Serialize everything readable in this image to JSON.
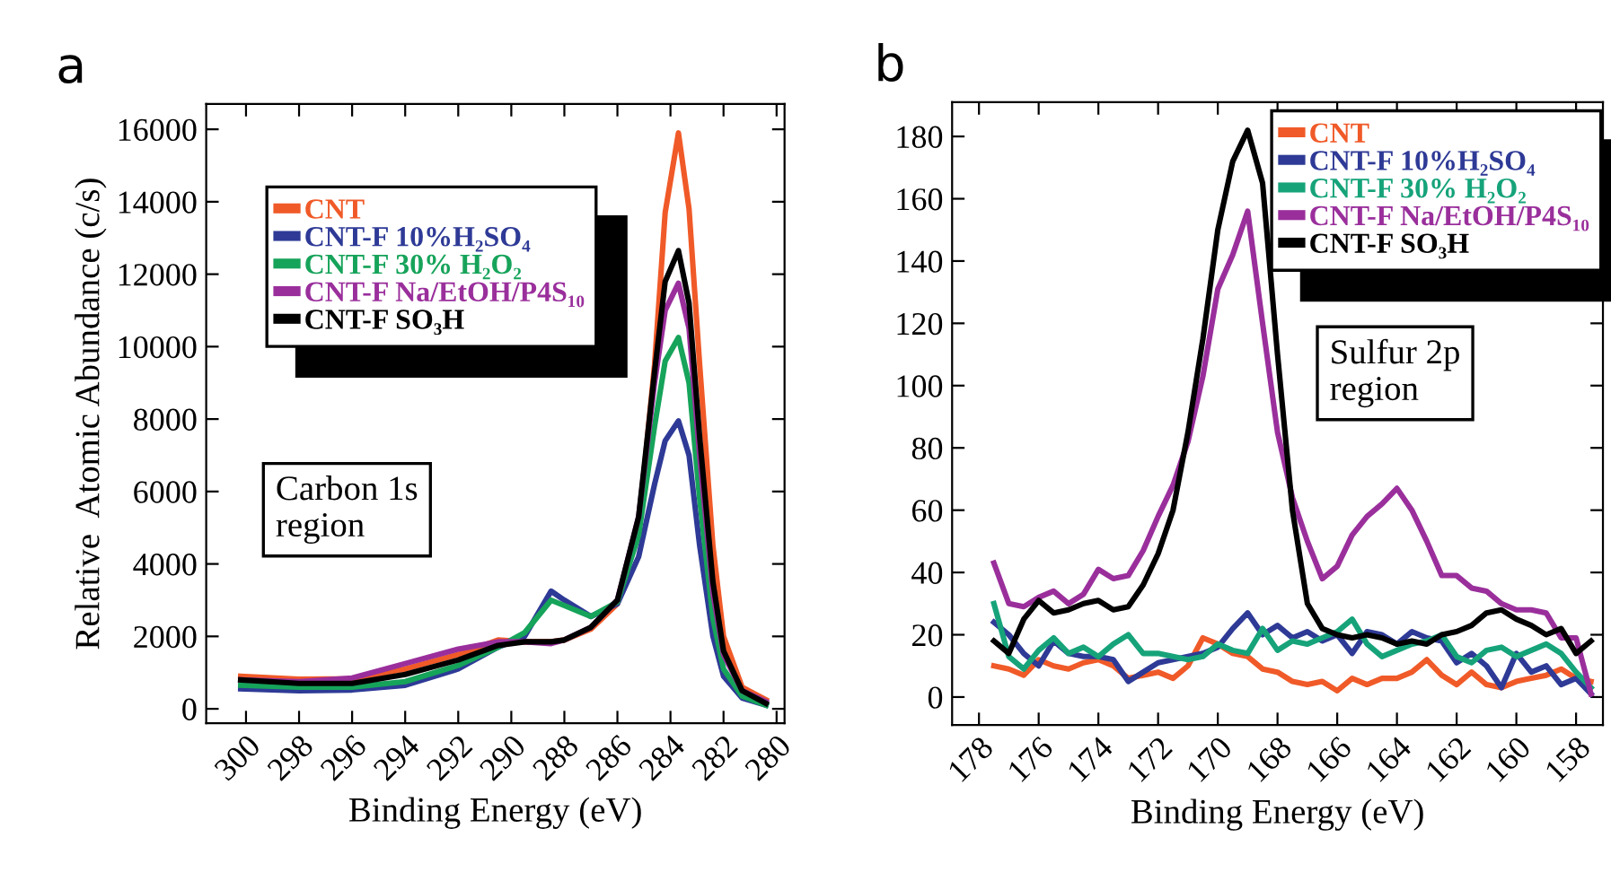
{
  "chart_data": [
    {
      "type": "line",
      "title": "a",
      "xlabel": "Binding Energy (eV)",
      "ylabel": "Relative  Atomic Abundance (c/s)",
      "annotations": [
        "Carbon 1s\nregion"
      ],
      "x": [
        300.2,
        298,
        296,
        294,
        292,
        290.5,
        289.5,
        288.5,
        288,
        287,
        286,
        285.2,
        284.6,
        284.2,
        283.7,
        283.3,
        282.9,
        282.4,
        282,
        281.3,
        280.4
      ],
      "xlim": [
        301.5,
        279.7
      ],
      "xticks": [
        300,
        298,
        296,
        294,
        292,
        290,
        288,
        286,
        284,
        282,
        280
      ],
      "ylim": [
        -400,
        16700
      ],
      "yticks": [
        0,
        2000,
        4000,
        6000,
        8000,
        10000,
        12000,
        14000,
        16000
      ],
      "legend": "top left",
      "grid": false,
      "series": [
        {
          "name": "CNT",
          "color": "#f05a28",
          "values": [
            900,
            820,
            830,
            1100,
            1500,
            1900,
            1850,
            1850,
            1900,
            2200,
            2900,
            5000,
            9500,
            13700,
            15900,
            13800,
            9500,
            4500,
            2000,
            600,
            250
          ]
        },
        {
          "name": "CNT-F 10%H₂SO₄",
          "color": "#2e3a96",
          "values": [
            550,
            500,
            520,
            650,
            1100,
            1700,
            2000,
            3250,
            3000,
            2550,
            2900,
            4200,
            6200,
            7400,
            7950,
            7000,
            4500,
            2000,
            900,
            300,
            100
          ]
        },
        {
          "name": "CNT-F 30% H₂O₂",
          "color": "#16a35a",
          "values": [
            650,
            600,
            600,
            750,
            1200,
            1700,
            2100,
            3000,
            2850,
            2550,
            2950,
            4800,
            7800,
            9600,
            10250,
            9000,
            5800,
            2500,
            1100,
            350,
            100
          ]
        },
        {
          "name": "CNT-F Na/EtOH/P4S₁₀",
          "color": "#9a2f9c",
          "values": [
            800,
            750,
            850,
            1250,
            1650,
            1850,
            1850,
            1800,
            1900,
            2250,
            3000,
            5300,
            9000,
            11000,
            11750,
            10500,
            7000,
            3200,
            1500,
            500,
            200
          ]
        },
        {
          "name": "CNT-F SO₃H",
          "color": "#000000",
          "values": [
            800,
            700,
            700,
            950,
            1350,
            1750,
            1850,
            1850,
            1900,
            2250,
            3000,
            5300,
            9300,
            11800,
            12650,
            11200,
            7500,
            3500,
            1600,
            500,
            150
          ]
        }
      ]
    },
    {
      "type": "line",
      "title": "b",
      "xlabel": "Binding Energy (eV)",
      "annotations": [
        "Sulfur 2p\nregion"
      ],
      "x": [
        177.5,
        177.0,
        176.5,
        176.0,
        175.5,
        175.0,
        174.5,
        174.0,
        173.5,
        173.0,
        172.5,
        172.0,
        171.5,
        171.0,
        170.5,
        170.0,
        169.5,
        169.0,
        168.5,
        168.0,
        167.5,
        167.0,
        166.5,
        166.0,
        165.5,
        165.0,
        164.5,
        164.0,
        163.5,
        163.0,
        162.5,
        162.0,
        161.5,
        161.0,
        160.5,
        160.0,
        159.5,
        159.0,
        158.5,
        158.0,
        157.5
      ],
      "xlim": [
        178.9,
        157.1
      ],
      "xticks": [
        178,
        176,
        174,
        172,
        170,
        168,
        166,
        164,
        162,
        160,
        158
      ],
      "ylim": [
        -9,
        191
      ],
      "yticks": [
        0,
        20,
        40,
        60,
        80,
        100,
        120,
        140,
        160,
        180
      ],
      "legend": "top right",
      "grid": false,
      "series": [
        {
          "name": "CNT",
          "color": "#f05a28",
          "values": [
            10,
            9,
            7,
            12,
            10,
            9,
            11,
            12,
            10,
            6,
            7,
            8,
            6,
            10,
            19,
            17,
            14,
            13,
            9,
            8,
            5,
            4,
            5,
            2,
            6,
            4,
            6,
            6,
            8,
            12,
            7,
            4,
            8,
            4,
            3,
            5,
            6,
            7,
            9,
            6,
            5
          ]
        },
        {
          "name": "CNT-F 10%H₂SO₄",
          "color": "#2e3a96",
          "values": [
            24,
            20,
            14,
            10,
            18,
            14,
            13,
            13,
            12,
            5,
            8,
            11,
            12,
            13,
            14,
            16,
            22,
            27,
            20,
            23,
            19,
            21,
            18,
            20,
            14,
            21,
            20,
            17,
            21,
            19,
            18,
            11,
            14,
            10,
            3,
            14,
            8,
            10,
            4,
            6,
            1
          ]
        },
        {
          "name": "CNT-F 30% H₂O₂",
          "color": "#16a37a",
          "values": [
            30,
            13,
            9,
            15,
            19,
            14,
            16,
            13,
            17,
            20,
            14,
            14,
            13,
            12,
            13,
            17,
            15,
            14,
            22,
            15,
            18,
            17,
            19,
            21,
            25,
            17,
            13,
            15,
            17,
            18,
            20,
            13,
            11,
            15,
            16,
            13,
            15,
            17,
            14,
            8,
            3
          ]
        },
        {
          "name": "CNT-F Na/EtOH/P4S₁₀",
          "color": "#9a2f9c",
          "values": [
            43,
            30,
            29,
            32,
            34,
            30,
            33,
            41,
            38,
            39,
            47,
            58,
            68,
            82,
            103,
            131,
            142,
            156,
            120,
            85,
            64,
            50,
            38,
            42,
            52,
            58,
            62,
            67,
            60,
            50,
            39,
            39,
            35,
            34,
            30,
            28,
            28,
            27,
            19,
            19,
            1
          ]
        },
        {
          "name": "CNT-F SO₃H",
          "color": "#000000",
          "values": [
            18,
            14,
            25,
            31,
            27,
            28,
            30,
            31,
            28,
            29,
            36,
            46,
            60,
            85,
            115,
            150,
            172,
            182,
            165,
            110,
            60,
            30,
            22,
            20,
            19,
            20,
            19,
            17,
            18,
            17,
            20,
            21,
            23,
            27,
            28,
            25,
            23,
            20,
            22,
            14,
            18
          ]
        }
      ]
    }
  ]
}
